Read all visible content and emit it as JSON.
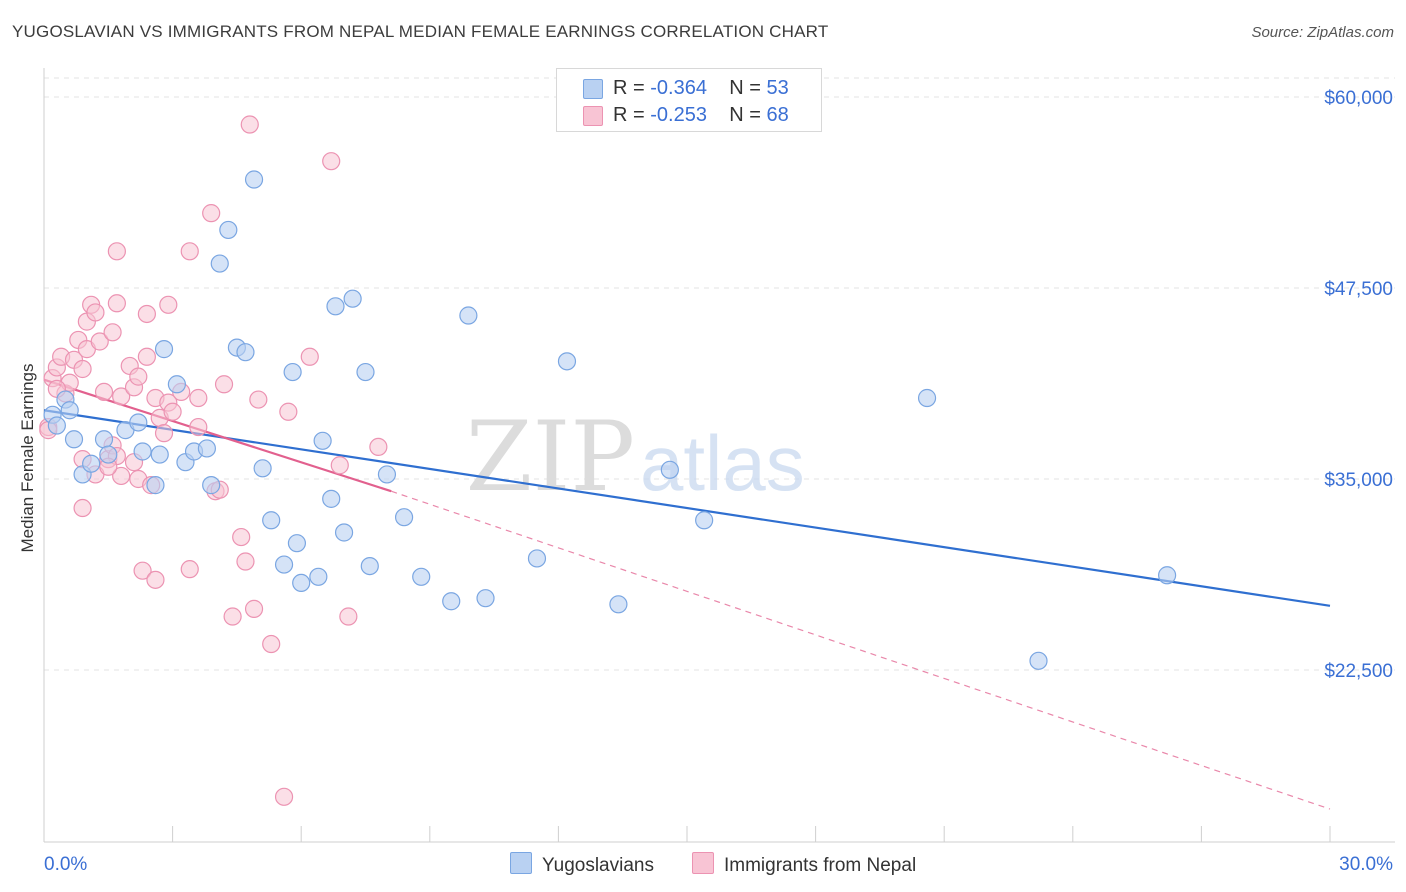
{
  "title": "YUGOSLAVIAN VS IMMIGRANTS FROM NEPAL MEDIAN FEMALE EARNINGS CORRELATION CHART",
  "source": "Source: ZipAtlas.com",
  "watermark": {
    "zip": "ZIP",
    "atlas": "atlas"
  },
  "stats": {
    "yugo": {
      "r_label": "R = ",
      "r": "-0.364",
      "n_label": "N = ",
      "n": "53"
    },
    "nepal": {
      "r_label": "R = ",
      "r": "-0.253",
      "n_label": "N = ",
      "n": "68"
    }
  },
  "legend": {
    "yugo": "Yugoslavians",
    "nepal": "Immigrants from Nepal"
  },
  "colors": {
    "yugo_fill": "#b9d1f2",
    "yugo_stroke": "#7aa6e2",
    "yugo_line": "#2f6fd0",
    "nepal_fill": "#f8c4d4",
    "nepal_stroke": "#ec93b2",
    "nepal_line": "#e2608e",
    "axis_label": "#3a6fd4",
    "grid": "#e3e3e3"
  },
  "chart_data": {
    "type": "scatter",
    "xlabel": "",
    "ylabel": "Median Female Earnings",
    "xlim": [
      0,
      30
    ],
    "ylim": [
      12000,
      61000
    ],
    "x_tick_labels": [
      "0.0%",
      "30.0%"
    ],
    "y_ticks": [
      22500,
      35000,
      47500,
      60000
    ],
    "y_tick_labels": [
      "$22,500",
      "$35,000",
      "$47,500",
      "$60,000"
    ],
    "grid": true,
    "legend_position": "bottom",
    "series": [
      {
        "name": "Yugoslavians",
        "trend": {
          "x": [
            0.0,
            30.0
          ],
          "y": [
            39500,
            26700
          ],
          "style": "solid"
        },
        "points": [
          [
            0.2,
            39200
          ],
          [
            0.5,
            40200
          ],
          [
            0.7,
            37600
          ],
          [
            0.9,
            35300
          ],
          [
            1.1,
            36000
          ],
          [
            0.6,
            39500
          ],
          [
            1.4,
            37600
          ],
          [
            1.5,
            36600
          ],
          [
            1.9,
            38200
          ],
          [
            2.2,
            38700
          ],
          [
            2.3,
            36800
          ],
          [
            2.6,
            34600
          ],
          [
            2.7,
            36600
          ],
          [
            2.8,
            43500
          ],
          [
            3.1,
            41200
          ],
          [
            3.3,
            36100
          ],
          [
            3.5,
            36800
          ],
          [
            3.8,
            37000
          ],
          [
            3.9,
            34600
          ],
          [
            4.1,
            49100
          ],
          [
            4.3,
            51300
          ],
          [
            4.5,
            43600
          ],
          [
            4.7,
            43300
          ],
          [
            4.9,
            54600
          ],
          [
            5.1,
            35700
          ],
          [
            5.3,
            32300
          ],
          [
            5.6,
            29400
          ],
          [
            5.8,
            42000
          ],
          [
            5.9,
            30800
          ],
          [
            6.0,
            28200
          ],
          [
            6.4,
            28600
          ],
          [
            6.5,
            37500
          ],
          [
            6.7,
            33700
          ],
          [
            6.8,
            46300
          ],
          [
            7.0,
            31500
          ],
          [
            7.2,
            46800
          ],
          [
            7.5,
            42000
          ],
          [
            7.6,
            29300
          ],
          [
            8.0,
            35300
          ],
          [
            8.4,
            32500
          ],
          [
            8.8,
            28600
          ],
          [
            9.5,
            27000
          ],
          [
            9.9,
            45700
          ],
          [
            10.3,
            27200
          ],
          [
            11.5,
            29800
          ],
          [
            12.2,
            42700
          ],
          [
            13.4,
            26800
          ],
          [
            14.6,
            35600
          ],
          [
            15.4,
            32300
          ],
          [
            20.6,
            40300
          ],
          [
            23.2,
            23100
          ],
          [
            26.2,
            28700
          ],
          [
            0.3,
            38500
          ]
        ]
      },
      {
        "name": "Immigrants from Nepal",
        "trend": {
          "x": [
            0.0,
            8.1
          ],
          "y": [
            41500,
            34200
          ],
          "style": "solid",
          "extended": {
            "x": [
              8.1,
              30.0
            ],
            "y": [
              34200,
              13400
            ],
            "style": "dashed"
          }
        },
        "points": [
          [
            0.1,
            38400
          ],
          [
            0.2,
            41600
          ],
          [
            0.3,
            42300
          ],
          [
            0.4,
            43000
          ],
          [
            0.5,
            40600
          ],
          [
            0.6,
            41300
          ],
          [
            0.7,
            42800
          ],
          [
            0.8,
            44100
          ],
          [
            0.9,
            42200
          ],
          [
            0.9,
            36300
          ],
          [
            0.9,
            33100
          ],
          [
            1.0,
            43500
          ],
          [
            1.0,
            45300
          ],
          [
            1.1,
            46400
          ],
          [
            1.2,
            45900
          ],
          [
            1.2,
            35300
          ],
          [
            1.3,
            44000
          ],
          [
            1.4,
            40700
          ],
          [
            1.5,
            36300
          ],
          [
            1.6,
            44600
          ],
          [
            1.6,
            37200
          ],
          [
            1.7,
            36500
          ],
          [
            1.8,
            40400
          ],
          [
            1.8,
            35200
          ],
          [
            1.7,
            49900
          ],
          [
            1.7,
            46500
          ],
          [
            2.0,
            42400
          ],
          [
            2.1,
            41000
          ],
          [
            2.1,
            36100
          ],
          [
            2.2,
            41700
          ],
          [
            2.2,
            35000
          ],
          [
            2.3,
            29000
          ],
          [
            2.4,
            45800
          ],
          [
            2.4,
            43000
          ],
          [
            2.5,
            34600
          ],
          [
            2.6,
            40300
          ],
          [
            2.7,
            39000
          ],
          [
            2.8,
            38000
          ],
          [
            2.9,
            46400
          ],
          [
            2.9,
            40000
          ],
          [
            2.6,
            28400
          ],
          [
            3.0,
            39400
          ],
          [
            3.2,
            40700
          ],
          [
            3.4,
            29100
          ],
          [
            3.4,
            49900
          ],
          [
            3.6,
            38400
          ],
          [
            3.9,
            52400
          ],
          [
            4.0,
            34200
          ],
          [
            4.1,
            34300
          ],
          [
            4.2,
            41200
          ],
          [
            4.4,
            26000
          ],
          [
            4.6,
            31200
          ],
          [
            4.7,
            29600
          ],
          [
            4.8,
            58200
          ],
          [
            4.9,
            26500
          ],
          [
            5.0,
            40200
          ],
          [
            5.3,
            24200
          ],
          [
            5.6,
            14200
          ],
          [
            5.7,
            39400
          ],
          [
            6.2,
            43000
          ],
          [
            6.7,
            55800
          ],
          [
            6.9,
            35900
          ],
          [
            7.1,
            26000
          ],
          [
            7.8,
            37100
          ],
          [
            0.1,
            38200
          ],
          [
            0.3,
            40900
          ],
          [
            1.5,
            35800
          ],
          [
            3.6,
            40300
          ]
        ]
      }
    ]
  }
}
